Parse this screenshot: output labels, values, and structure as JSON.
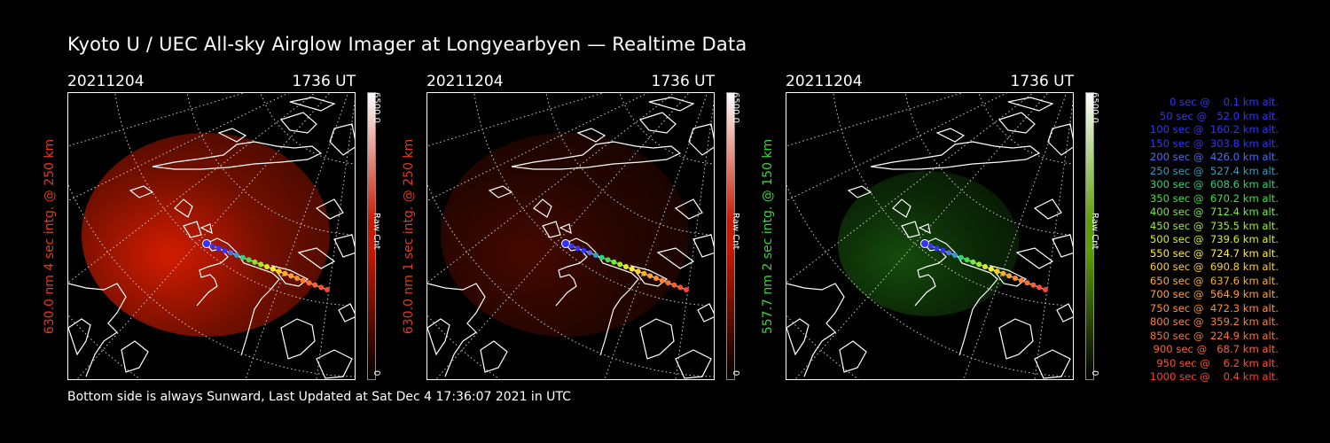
{
  "title": "Kyoto U / UEC All-sky Airglow Imager at Longyearbyen — Realtime Data",
  "footer": "Bottom side is always Sunward, Last Updated at Sat Dec  4 17:36:07 2021 in UTC",
  "panels": [
    {
      "date": "20211204",
      "time": "1736 UT",
      "side_label": "630.0 nm 4 sec intg. @ 250 km",
      "side_color": "#e23a1c",
      "cbar_max": "6500.0",
      "cbar_min": "0",
      "cbar_unit": "Raw Cnt",
      "glow_color": "#ff2200",
      "glow_strength": 0.55,
      "cbar_color": "#c81800"
    },
    {
      "date": "20211204",
      "time": "1736 UT",
      "side_label": "630.0 nm 1 sec intg. @ 250 km",
      "side_color": "#e23a1c",
      "cbar_max": "6500.0",
      "cbar_min": "0",
      "cbar_unit": "Raw Cnt",
      "glow_color": "#ff2200",
      "glow_strength": 0.18,
      "cbar_color": "#c81800"
    },
    {
      "date": "20211204",
      "time": "1736 UT",
      "side_label": "557.7 nm 2 sec intg. @ 150 km",
      "side_color": "#3fd23f",
      "cbar_max": "6500.0",
      "cbar_min": "0",
      "cbar_unit": "Raw Cnt",
      "glow_color": "#2ea81a",
      "glow_strength": 0.3,
      "cbar_color": "#5aa000"
    }
  ],
  "legend": [
    {
      "text": "   0 sec @    0.1 km alt.",
      "color": "#3333ff"
    },
    {
      "text": "  50 sec @   52.0 km alt.",
      "color": "#3333ff"
    },
    {
      "text": " 100 sec @  160.2 km alt.",
      "color": "#3333ff"
    },
    {
      "text": " 150 sec @  303.8 km alt.",
      "color": "#3333ff"
    },
    {
      "text": " 200 sec @  426.0 km alt.",
      "color": "#4a6cff"
    },
    {
      "text": " 250 sec @  527.4 km alt.",
      "color": "#2fa0c8"
    },
    {
      "text": " 300 sec @  608.6 km alt.",
      "color": "#2fd080"
    },
    {
      "text": " 350 sec @  670.2 km alt.",
      "color": "#40e040"
    },
    {
      "text": " 400 sec @  712.4 km alt.",
      "color": "#70f030"
    },
    {
      "text": " 450 sec @  735.5 km alt.",
      "color": "#a0f020"
    },
    {
      "text": " 500 sec @  739.6 km alt.",
      "color": "#d8f020"
    },
    {
      "text": " 550 sec @  724.7 km alt.",
      "color": "#fff020"
    },
    {
      "text": " 600 sec @  690.8 km alt.",
      "color": "#ffd020"
    },
    {
      "text": " 650 sec @  637.6 km alt.",
      "color": "#ffb020"
    },
    {
      "text": " 700 sec @  564.9 km alt.",
      "color": "#ffa030"
    },
    {
      "text": " 750 sec @  472.3 km alt.",
      "color": "#ff9030"
    },
    {
      "text": " 800 sec @  359.2 km alt.",
      "color": "#ff8030"
    },
    {
      "text": " 850 sec @  224.9 km alt.",
      "color": "#ff7030"
    },
    {
      "text": " 900 sec @   68.7 km alt.",
      "color": "#ff6030"
    },
    {
      "text": " 950 sec @    6.2 km alt.",
      "color": "#ff5030"
    },
    {
      "text": "1000 sec @    0.4 km alt.",
      "color": "#ff4030"
    }
  ]
}
